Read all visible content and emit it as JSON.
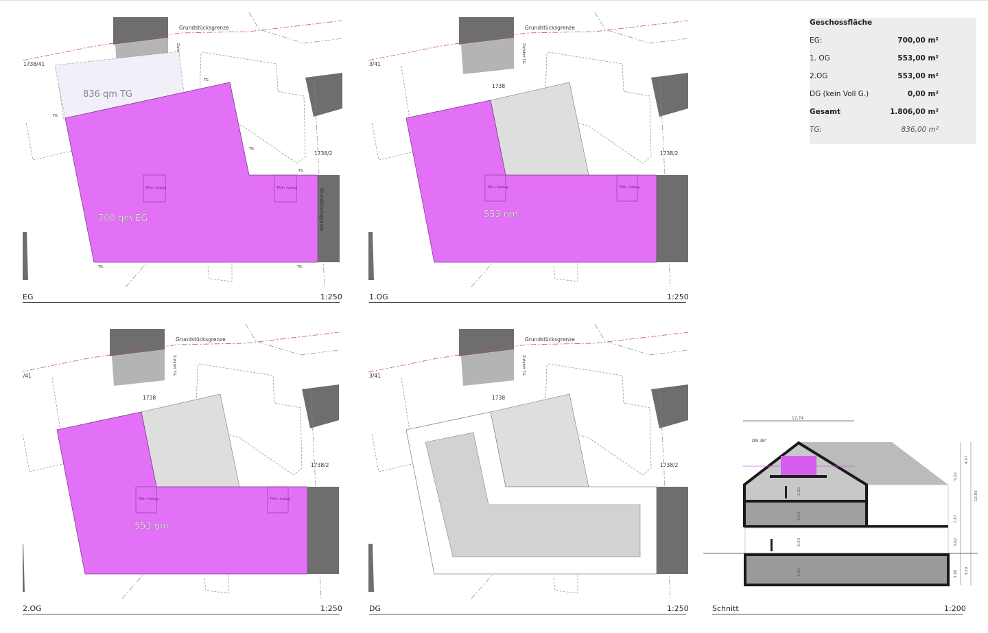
{
  "plans": [
    {
      "id": "eg",
      "label": "EG",
      "scale": "1:250",
      "area_label": "700 qm EG",
      "tg_label": "836 qm TG"
    },
    {
      "id": "og1",
      "label": "1.OG",
      "scale": "1:250",
      "area_label": "553 qm"
    },
    {
      "id": "og2",
      "label": "2.OG",
      "scale": "1:250",
      "area_label": "553 qm"
    },
    {
      "id": "dg",
      "label": "DG",
      "scale": "1:250",
      "area_label": ""
    }
  ],
  "site_labels": {
    "boundary_top": "Grundstücksgrenze",
    "boundary_right": "Grundstücksgrenze",
    "driveway": "Zufahrt TG",
    "parcel_main": "1738",
    "parcel_left": "1738/41",
    "parcel_left_cropped": "3/41",
    "parcel_right": "1738/2",
    "tg_marker": "TG",
    "stair_lift": "TRH+ Aufzug"
  },
  "section": {
    "label": "Schnitt",
    "scale": "1:200",
    "roof_pitch": "DN 38°",
    "width_dim": "12,74",
    "dims_right": [
      "4,97",
      "9,22",
      "7,87",
      "12,85",
      "3,62",
      "3,80",
      "3,50"
    ],
    "dims_inner": [
      "2,50",
      "2,50",
      "2,50",
      "3,00"
    ]
  },
  "area_table": {
    "title": "Geschossfläche",
    "rows": [
      {
        "label": "EG:",
        "value": "700,00 m²",
        "style": "normal"
      },
      {
        "label": "1. OG",
        "value": "553,00 m²",
        "style": "normal"
      },
      {
        "label": "2.OG",
        "value": "553,00 m²",
        "style": "normal"
      },
      {
        "label": "DG (kein Voll G.)",
        "value": "0,00 m²",
        "style": "normal"
      },
      {
        "label": "Gesamt",
        "value": "1.806,00 m²",
        "style": "total"
      },
      {
        "label": "TG:",
        "value": "836,00 m²",
        "style": "italic"
      }
    ]
  },
  "colors": {
    "floor_area": "#e371f7",
    "existing_building": "#6e6e6e",
    "neighbor_light": "#b4b4b4",
    "property_line": "#c0506a",
    "tg_area": "#f1eff7",
    "upper_floor_gray": "#dedede"
  }
}
